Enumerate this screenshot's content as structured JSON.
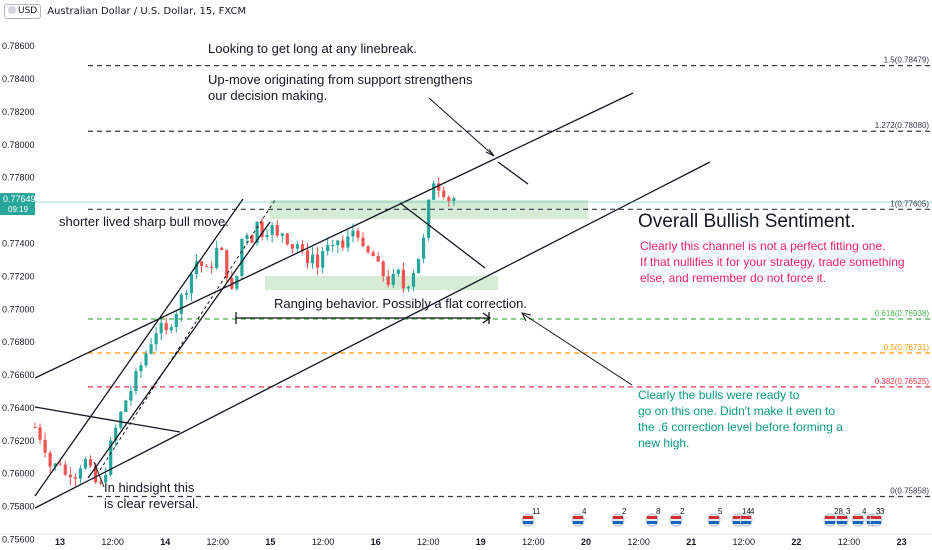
{
  "header": {
    "currency": "USD",
    "title": "Australian Dollar / U.S. Dollar, 15, FXCM"
  },
  "chart_data": {
    "type": "candlestick",
    "ylim": [
      0.7563,
      0.7872
    ],
    "y_ticks": [
      "0.78600",
      "0.78400",
      "0.78200",
      "0.78000",
      "0.77800",
      "0.77600",
      "0.77400",
      "0.77200",
      "0.77000",
      "0.76800",
      "0.76600",
      "0.76400",
      "0.76200",
      "0.76000",
      "0.75800",
      "0.75600"
    ],
    "x_ticks": [
      "13",
      "12:00",
      "14",
      "12:00",
      "15",
      "12:00",
      "16",
      "12:00",
      "19",
      "12:00",
      "20",
      "12:00",
      "21",
      "12:00",
      "22",
      "12:00",
      "23"
    ],
    "current_price": "0.77649",
    "countdown": "09:19",
    "price_path": [
      [
        0.0,
        0.7628
      ],
      [
        0.7,
        0.7618
      ],
      [
        1.3,
        0.76
      ],
      [
        1.8,
        0.761
      ],
      [
        2.3,
        0.7598
      ],
      [
        2.8,
        0.7603
      ],
      [
        3.2,
        0.7598
      ],
      [
        3.6,
        0.7612
      ],
      [
        4.0,
        0.7602
      ],
      [
        4.4,
        0.7598
      ],
      [
        4.8,
        0.7588
      ],
      [
        5.3,
        0.7602
      ],
      [
        5.8,
        0.762
      ],
      [
        6.3,
        0.7632
      ],
      [
        6.8,
        0.7644
      ],
      [
        7.3,
        0.7652
      ],
      [
        7.8,
        0.7662
      ],
      [
        8.3,
        0.7672
      ],
      [
        8.8,
        0.7682
      ],
      [
        9.3,
        0.769
      ],
      [
        9.8,
        0.7683
      ],
      [
        10.3,
        0.7694
      ],
      [
        10.8,
        0.7702
      ],
      [
        11.3,
        0.7712
      ],
      [
        11.8,
        0.7722
      ],
      [
        12.3,
        0.7732
      ],
      [
        12.8,
        0.772
      ],
      [
        13.3,
        0.7728
      ],
      [
        13.8,
        0.7738
      ],
      [
        14.3,
        0.7728
      ],
      [
        14.7,
        0.7712
      ],
      [
        15.0,
        0.7705
      ],
      [
        15.4,
        0.7735
      ],
      [
        15.8,
        0.7752
      ],
      [
        16.2,
        0.774
      ],
      [
        16.7,
        0.7752
      ],
      [
        17.2,
        0.7746
      ],
      [
        17.7,
        0.7752
      ],
      [
        18.2,
        0.7742
      ],
      [
        18.7,
        0.7748
      ],
      [
        19.3,
        0.7738
      ],
      [
        19.8,
        0.774
      ],
      [
        20.3,
        0.7728
      ],
      [
        20.8,
        0.7735
      ],
      [
        21.3,
        0.7725
      ],
      [
        21.8,
        0.774
      ],
      [
        22.3,
        0.7732
      ],
      [
        22.8,
        0.7742
      ],
      [
        23.3,
        0.7735
      ],
      [
        23.8,
        0.7748
      ],
      [
        24.3,
        0.7748
      ],
      [
        24.8,
        0.773
      ],
      [
        25.3,
        0.7735
      ],
      [
        25.8,
        0.7725
      ],
      [
        26.3,
        0.772
      ],
      [
        26.8,
        0.7715
      ],
      [
        27.3,
        0.7722
      ],
      [
        27.8,
        0.7712
      ],
      [
        28.3,
        0.772
      ],
      [
        28.8,
        0.773
      ],
      [
        29.3,
        0.7742
      ],
      [
        29.6,
        0.776
      ],
      [
        29.9,
        0.778
      ],
      [
        30.3,
        0.7776
      ],
      [
        30.8,
        0.7772
      ],
      [
        31.3,
        0.7765
      ],
      [
        31.6,
        0.7768
      ]
    ],
    "levels": [
      {
        "label": "1.5(0.78479)",
        "value": 0.78479,
        "color": "#363a45"
      },
      {
        "label": "1.272(0.78080)",
        "value": 0.7808,
        "color": "#363a45"
      },
      {
        "label": "1(0.77605)",
        "value": 0.77605,
        "color": "#363a45"
      },
      {
        "label": "0.618(0.76938)",
        "value": 0.76938,
        "color": "#4caf50"
      },
      {
        "label": "0.5(0.76731)",
        "value": 0.76731,
        "color": "#ff9800"
      },
      {
        "label": "0.382(0.76525)",
        "value": 0.76525,
        "color": "#f23645"
      },
      {
        "label": "0(0.75858)",
        "value": 0.75858,
        "color": "#363a45"
      }
    ],
    "annotations": {
      "long": "Looking to get long at any linebreak.",
      "upmove1": "Up-move originating from support strengthens",
      "upmove2": "our decision making.",
      "sharp": "shorter lived sharp bull move.",
      "ranging": "Ranging behavior. Possibly a flat correction.",
      "sentiment": "Overall Bullish Sentiment.",
      "pink1": "Clearly this channel is not a perfect fitting one.",
      "pink2": "If that nullifies it for your strategy, trade something",
      "pink3": "else, and remember do not force it.",
      "bulls1": "Clearly the bulls were ready to",
      "bulls2": "go on this one. Didn't make it even to",
      "bulls3": "the .6 correction level before forming a",
      "bulls4": "new high.",
      "hind1": "In hindsight this",
      "hind2": "is clear reversal."
    },
    "events": [
      "11",
      "4",
      "2",
      "8",
      "2",
      "5",
      "14",
      "4",
      "28",
      "3",
      "4",
      "3",
      "3"
    ],
    "colors": {
      "up": "#26a69a",
      "down": "#ef5350",
      "text": "#131722",
      "pink": "#e91e63",
      "teal": "#089981",
      "zone": "#c8e6c9",
      "priceLine": "#26a69a"
    }
  }
}
